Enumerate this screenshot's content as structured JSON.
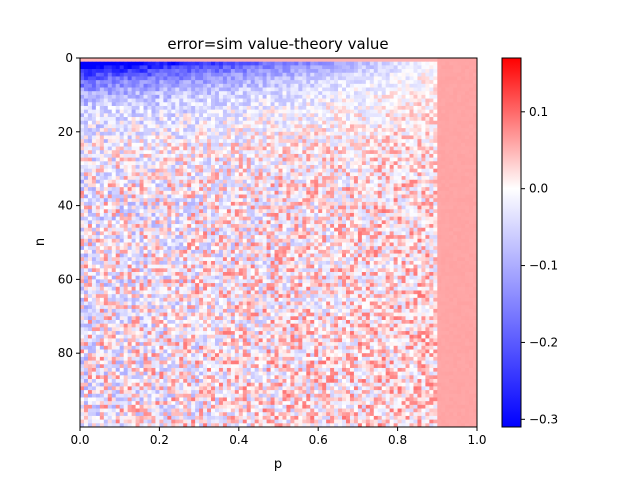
{
  "chart_data": {
    "type": "heatmap",
    "title": "error=sim value-theory value",
    "xlabel": "p",
    "ylabel": "n",
    "xlim": [
      0.0,
      1.0
    ],
    "ylim": [
      0,
      100
    ],
    "y_inverted": true,
    "x_ticks": [
      0.0,
      0.2,
      0.4,
      0.6,
      0.8,
      1.0
    ],
    "x_tick_labels": [
      "0.0",
      "0.2",
      "0.4",
      "0.6",
      "0.8",
      "1.0"
    ],
    "y_ticks": [
      0,
      20,
      40,
      60,
      80
    ],
    "y_tick_labels": [
      "0",
      "20",
      "40",
      "60",
      "80"
    ],
    "grid_shape": {
      "rows": 100,
      "cols": 100
    },
    "colormap": "bwr",
    "color_range": [
      -0.31,
      0.17
    ],
    "colorbar_ticks": [
      0.1,
      0.0,
      -0.1,
      -0.2,
      -0.3
    ],
    "colorbar_tick_labels": [
      "0.1",
      "0.0",
      "−0.1",
      "−0.2",
      "−0.3"
    ],
    "colors": {
      "low": "#0000ff",
      "mid": "#ffffff",
      "high": "#ff0000"
    },
    "pattern": {
      "description_of_values": "strong negative error (about -0.3) for small n (roughly 1-15) at low p, fading toward 0 as p increases; noisy values around 0 elsewhere; near-constant positive error (~0.06) for p above ~0.9",
      "strong_negative_band_n": [
        1,
        15
      ],
      "right_band_value": 0.06,
      "right_band_p_start": 0.9,
      "noise_amplitude": 0.1
    }
  }
}
